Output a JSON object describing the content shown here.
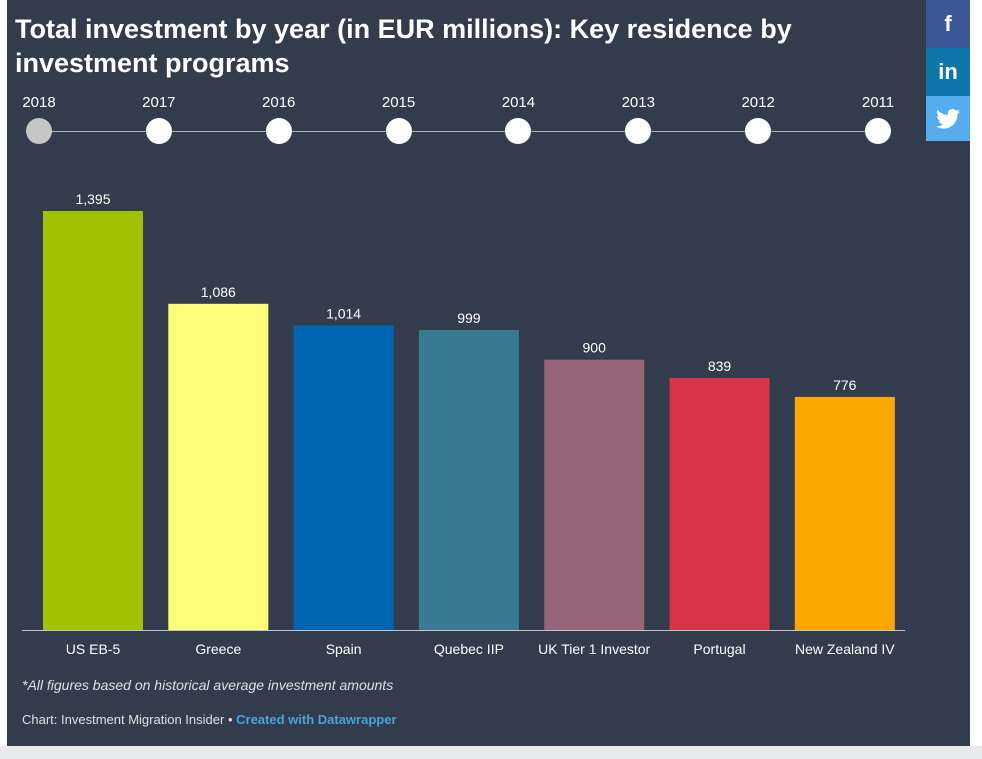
{
  "title": "Total investment by year (in EUR millions): Key residence by investment programs",
  "timeline": {
    "years": [
      "2018",
      "2017",
      "2016",
      "2015",
      "2014",
      "2013",
      "2012",
      "2011"
    ],
    "active_year": "2018"
  },
  "social": {
    "facebook_label": "f",
    "linkedin_label": "in"
  },
  "chart_data": {
    "type": "bar",
    "title": "Total investment by year (in EUR millions): Key residence by investment programs",
    "categories": [
      "US EB-5",
      "Greece",
      "Spain",
      "Quebec IIP",
      "UK Tier 1 Investor",
      "Portugal",
      "New Zealand IV"
    ],
    "values": [
      1395,
      1086,
      1014,
      999,
      900,
      839,
      776
    ],
    "value_labels": [
      "1,395",
      "1,086",
      "1,014",
      "999",
      "900",
      "839",
      "776"
    ],
    "colors": [
      "#a2c100",
      "#fdfd78",
      "#0066b3",
      "#3a7b94",
      "#966577",
      "#d73447",
      "#fca700"
    ],
    "xlabel": "",
    "ylabel": "",
    "ylim": [
      0,
      1395
    ],
    "grid": false,
    "legend": "none"
  },
  "note": "*All figures based on historical average investment amounts",
  "credit": {
    "source": "Chart: Investment Migration Insider",
    "separator": "•",
    "link": "Created with Datawrapper"
  }
}
